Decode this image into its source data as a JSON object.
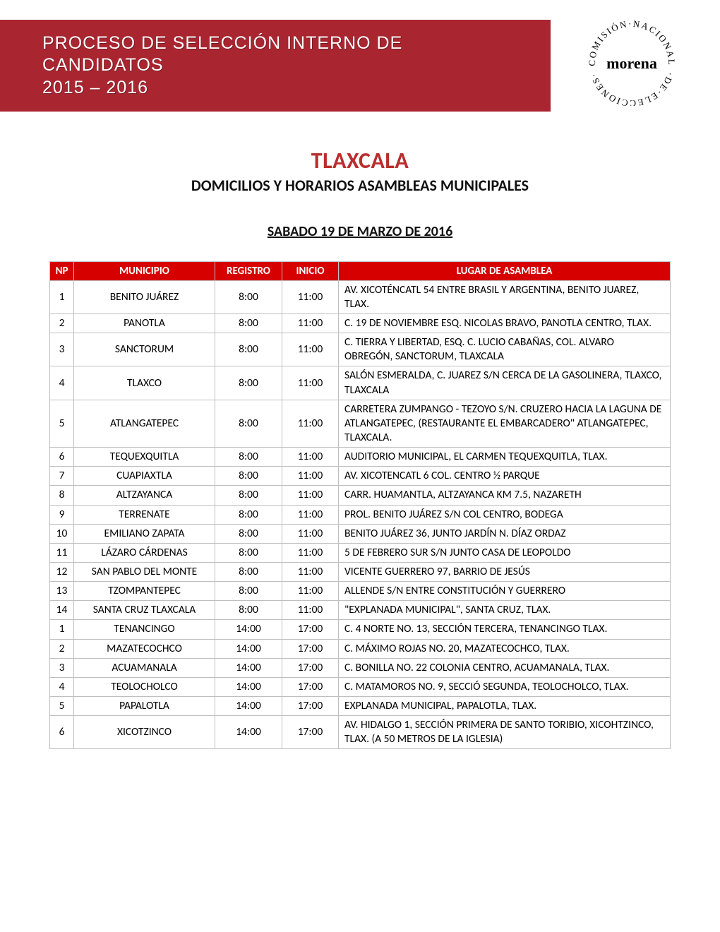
{
  "header": {
    "title_line1": "PROCESO DE SELECCIÓN INTERNO DE CANDIDATOS",
    "title_line2": "2015 – 2016",
    "bar_bg": "#a92631",
    "bar_text_color": "#ffffff"
  },
  "logo": {
    "brand_text": "morena",
    "circle_text_top": "COMISIÓN·NACIONAL",
    "circle_text_bottom": "·DE·ELECCIONES·",
    "text_color": "#000000"
  },
  "titles": {
    "state": "TLAXCALA",
    "state_color": "#b92e2e",
    "subtitle": "DOMICILIOS  Y HORARIOS ASAMBLEAS MUNICIPALES",
    "date": "SABADO 19 DE MARZO DE 2016"
  },
  "table": {
    "header_bg": "#d60000",
    "header_color": "#ffffff",
    "border_color": "#bfbfbf",
    "columns": [
      "NP",
      "MUNICIPIO",
      "REGISTRO",
      "INICIO",
      "LUGAR DE ASAMBLEA"
    ],
    "rows": [
      {
        "np": "1",
        "municipio": "BENITO JUÁREZ",
        "registro": "8:00",
        "inicio": "11:00",
        "lugar": "AV. XICOTÉNCATL 54 ENTRE BRASIL Y ARGENTINA, BENITO JUAREZ, TLAX."
      },
      {
        "np": "2",
        "municipio": "PANOTLA",
        "registro": "8:00",
        "inicio": "11:00",
        "lugar": "C. 19 DE NOVIEMBRE ESQ. NICOLAS BRAVO, PANOTLA CENTRO, TLAX."
      },
      {
        "np": "3",
        "municipio": "SANCTORUM",
        "registro": "8:00",
        "inicio": "11:00",
        "lugar": "C. TIERRA Y LIBERTAD, ESQ. C. LUCIO CABAÑAS, COL. ALVARO OBREGÓN, SANCTORUM, TLAXCALA"
      },
      {
        "np": "4",
        "municipio": "TLAXCO",
        "registro": "8:00",
        "inicio": "11:00",
        "lugar": "SALÓN ESMERALDA, C. JUAREZ S/N CERCA DE LA GASOLINERA, TLAXCO, TLAXCALA"
      },
      {
        "np": "5",
        "municipio": "ATLANGATEPEC",
        "registro": "8:00",
        "inicio": "11:00",
        "lugar": "CARRETERA ZUMPANGO - TEZOYO S/N. CRUZERO HACIA LA LAGUNA DE ATLANGATEPEC, (RESTAURANTE EL EMBARCADERO\" ATLANGATEPEC, TLAXCALA."
      },
      {
        "np": "6",
        "municipio": "TEQUEXQUITLA",
        "registro": "8:00",
        "inicio": "11:00",
        "lugar": "AUDITORIO MUNICIPAL, EL CARMEN TEQUEXQUITLA, TLAX."
      },
      {
        "np": "7",
        "municipio": "CUAPIAXTLA",
        "registro": "8:00",
        "inicio": "11:00",
        "lugar": "AV. XICOTENCATL 6 COL. CENTRO ½ PARQUE"
      },
      {
        "np": "8",
        "municipio": "ALTZAYANCA",
        "registro": "8:00",
        "inicio": "11:00",
        "lugar": "CARR. HUAMANTLA, ALTZAYANCA KM 7.5, NAZARETH"
      },
      {
        "np": "9",
        "municipio": "TERRENATE",
        "registro": "8:00",
        "inicio": "11:00",
        "lugar": "PROL. BENITO JUÁREZ S/N COL CENTRO, BODEGA"
      },
      {
        "np": "10",
        "municipio": "EMILIANO ZAPATA",
        "registro": "8:00",
        "inicio": "11:00",
        "lugar": "BENITO JUÁREZ 36, JUNTO JARDÍN N. DÍAZ ORDAZ"
      },
      {
        "np": "11",
        "municipio": "LÁZARO CÁRDENAS",
        "registro": "8:00",
        "inicio": "11:00",
        "lugar": "5 DE FEBRERO SUR S/N JUNTO CASA DE LEOPOLDO"
      },
      {
        "np": "12",
        "municipio": "SAN PABLO DEL MONTE",
        "registro": "8:00",
        "inicio": "11:00",
        "lugar": "VICENTE GUERRERO 97, BARRIO DE JESÚS"
      },
      {
        "np": "13",
        "municipio": "TZOMPANTEPEC",
        "registro": "8:00",
        "inicio": "11:00",
        "lugar": "ALLENDE S/N ENTRE CONSTITUCIÓN Y GUERRERO"
      },
      {
        "np": "14",
        "municipio": "SANTA CRUZ TLAXCALA",
        "registro": "8:00",
        "inicio": "11:00",
        "lugar": "\"EXPLANADA MUNICIPAL\", SANTA CRUZ, TLAX."
      },
      {
        "np": "1",
        "municipio": "TENANCINGO",
        "registro": "14:00",
        "inicio": "17:00",
        "lugar": "C. 4 NORTE NO. 13, SECCIÓN TERCERA, TENANCINGO TLAX."
      },
      {
        "np": "2",
        "municipio": "MAZATECOCHCO",
        "registro": "14:00",
        "inicio": "17:00",
        "lugar": "C. MÁXIMO ROJAS NO. 20, MAZATECOCHCO, TLAX."
      },
      {
        "np": "3",
        "municipio": "ACUAMANALA",
        "registro": "14:00",
        "inicio": "17:00",
        "lugar": "C. BONILLA NO. 22 COLONIA CENTRO, ACUAMANALA, TLAX."
      },
      {
        "np": "4",
        "municipio": "TEOLOCHOLCO",
        "registro": "14:00",
        "inicio": "17:00",
        "lugar": "C. MATAMOROS NO. 9, SECCIÓ SEGUNDA, TEOLOCHOLCO, TLAX."
      },
      {
        "np": "5",
        "municipio": "PAPALOTLA",
        "registro": "14:00",
        "inicio": "17:00",
        "lugar": "EXPLANADA MUNICIPAL, PAPALOTLA, TLAX."
      },
      {
        "np": "6",
        "municipio": "XICOTZINCO",
        "registro": "14:00",
        "inicio": "17:00",
        "lugar": "AV. HIDALGO 1, SECCIÓN PRIMERA DE SANTO TORIBIO, XICOHTZINCO, TLAX. (A 50 METROS DE LA IGLESIA)"
      }
    ]
  }
}
